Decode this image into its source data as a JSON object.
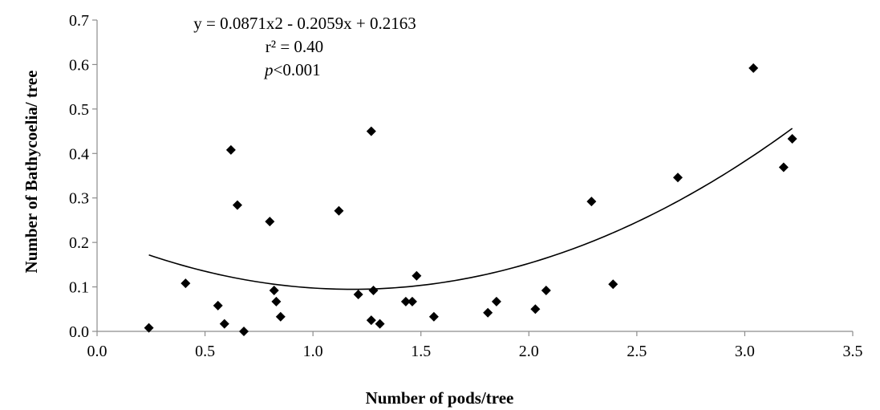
{
  "chart_data": {
    "type": "scatter",
    "xlabel": "Number of pods/tree",
    "ylabel": "Number of Bathycoelia/ tree",
    "xlim": [
      0,
      3.5
    ],
    "ylim": [
      0,
      0.7
    ],
    "x_ticks": [
      "0.0",
      "0.5",
      "1.0",
      "1.5",
      "2.0",
      "2.5",
      "3.0",
      "3.5"
    ],
    "y_ticks": [
      "0.0",
      "0.1",
      "0.2",
      "0.3",
      "0.4",
      "0.5",
      "0.6",
      "0.7"
    ],
    "grid": false,
    "annotations": {
      "equation": "y = 0.0871x2 - 0.2059x + 0.2163",
      "r2": "r² = 0.40",
      "p_symbol": "p",
      "p_rest": "<0.001"
    },
    "trendline": {
      "type": "polynomial",
      "order": 2,
      "coefficients": [
        0.0871,
        -0.2059,
        0.2163
      ],
      "x_range": [
        0.24,
        3.22
      ]
    },
    "points": [
      {
        "x": 0.24,
        "y": 0.008
      },
      {
        "x": 0.41,
        "y": 0.108
      },
      {
        "x": 0.56,
        "y": 0.058
      },
      {
        "x": 0.59,
        "y": 0.017
      },
      {
        "x": 0.62,
        "y": 0.408
      },
      {
        "x": 0.65,
        "y": 0.284
      },
      {
        "x": 0.68,
        "y": 0.0
      },
      {
        "x": 0.8,
        "y": 0.247
      },
      {
        "x": 0.82,
        "y": 0.092
      },
      {
        "x": 0.83,
        "y": 0.067
      },
      {
        "x": 0.85,
        "y": 0.033
      },
      {
        "x": 1.12,
        "y": 0.271
      },
      {
        "x": 1.21,
        "y": 0.083
      },
      {
        "x": 1.27,
        "y": 0.45
      },
      {
        "x": 1.27,
        "y": 0.025
      },
      {
        "x": 1.28,
        "y": 0.092
      },
      {
        "x": 1.31,
        "y": 0.017
      },
      {
        "x": 1.43,
        "y": 0.067
      },
      {
        "x": 1.46,
        "y": 0.067
      },
      {
        "x": 1.48,
        "y": 0.125
      },
      {
        "x": 1.56,
        "y": 0.033
      },
      {
        "x": 1.81,
        "y": 0.042
      },
      {
        "x": 1.85,
        "y": 0.067
      },
      {
        "x": 2.03,
        "y": 0.05
      },
      {
        "x": 2.08,
        "y": 0.092
      },
      {
        "x": 2.29,
        "y": 0.292
      },
      {
        "x": 2.39,
        "y": 0.106
      },
      {
        "x": 2.69,
        "y": 0.346
      },
      {
        "x": 3.04,
        "y": 0.592
      },
      {
        "x": 3.18,
        "y": 0.369
      },
      {
        "x": 3.22,
        "y": 0.433
      }
    ]
  }
}
